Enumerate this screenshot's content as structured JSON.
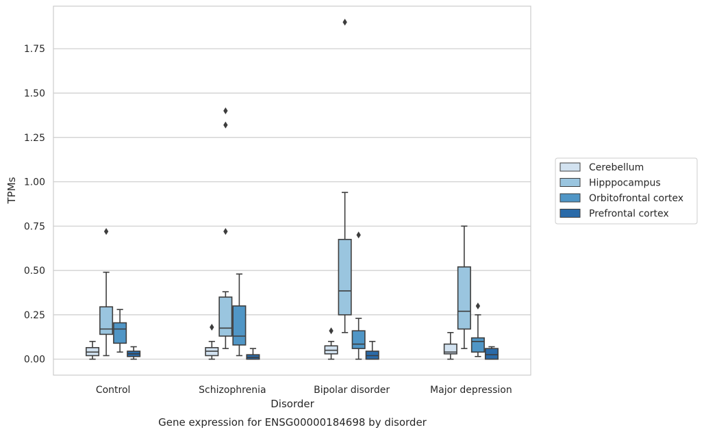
{
  "chart_data": {
    "type": "boxplot",
    "xlabel": "Disorder",
    "ylabel": "TPMs",
    "caption": "Gene expression for ENSG00000184698 by disorder",
    "ylim": [
      -0.09,
      1.99
    ],
    "yticks": [
      "0.00",
      "0.25",
      "0.50",
      "0.75",
      "1.00",
      "1.25",
      "1.50",
      "1.75"
    ],
    "grid": "horizontal",
    "legend_position": "right",
    "categories": [
      "Control",
      "Schizophrenia",
      "Bipolar disorder",
      "Major depression"
    ],
    "series": [
      {
        "name": "Cerebellum",
        "color": "#d2e2f0",
        "boxes": [
          {
            "whislo": 0.0,
            "q1": 0.02,
            "med": 0.04,
            "q3": 0.065,
            "whishi": 0.1,
            "fliers": []
          },
          {
            "whislo": 0.0,
            "q1": 0.02,
            "med": 0.045,
            "q3": 0.065,
            "whishi": 0.1,
            "fliers": [
              0.18
            ]
          },
          {
            "whislo": 0.0,
            "q1": 0.03,
            "med": 0.05,
            "q3": 0.075,
            "whishi": 0.1,
            "fliers": [
              0.16
            ]
          },
          {
            "whislo": 0.0,
            "q1": 0.03,
            "med": 0.04,
            "q3": 0.085,
            "whishi": 0.15,
            "fliers": []
          }
        ]
      },
      {
        "name": "Hipppocampus",
        "color": "#9ac5df",
        "boxes": [
          {
            "whislo": 0.02,
            "q1": 0.14,
            "med": 0.17,
            "q3": 0.295,
            "whishi": 0.49,
            "fliers": [
              0.72
            ]
          },
          {
            "whislo": 0.06,
            "q1": 0.13,
            "med": 0.175,
            "q3": 0.35,
            "whishi": 0.38,
            "fliers": [
              0.72,
              1.32,
              1.4
            ]
          },
          {
            "whislo": 0.15,
            "q1": 0.25,
            "med": 0.385,
            "q3": 0.675,
            "whishi": 0.94,
            "fliers": [
              1.9
            ]
          },
          {
            "whislo": 0.06,
            "q1": 0.17,
            "med": 0.27,
            "q3": 0.52,
            "whishi": 0.75,
            "fliers": []
          }
        ]
      },
      {
        "name": "Orbitofrontal cortex",
        "color": "#5096c6",
        "boxes": [
          {
            "whislo": 0.04,
            "q1": 0.09,
            "med": 0.17,
            "q3": 0.205,
            "whishi": 0.28,
            "fliers": []
          },
          {
            "whislo": 0.02,
            "q1": 0.08,
            "med": 0.13,
            "q3": 0.3,
            "whishi": 0.48,
            "fliers": []
          },
          {
            "whislo": 0.0,
            "q1": 0.06,
            "med": 0.085,
            "q3": 0.16,
            "whishi": 0.23,
            "fliers": [
              0.7
            ]
          },
          {
            "whislo": 0.015,
            "q1": 0.04,
            "med": 0.1,
            "q3": 0.12,
            "whishi": 0.25,
            "fliers": [
              0.3
            ]
          }
        ]
      },
      {
        "name": "Prefrontal cortex",
        "color": "#2a6aa8",
        "boxes": [
          {
            "whislo": 0.0,
            "q1": 0.015,
            "med": 0.03,
            "q3": 0.045,
            "whishi": 0.07,
            "fliers": []
          },
          {
            "whislo": 0.0,
            "q1": 0.0,
            "med": 0.01,
            "q3": 0.025,
            "whishi": 0.06,
            "fliers": []
          },
          {
            "whislo": 0.0,
            "q1": 0.0,
            "med": 0.02,
            "q3": 0.045,
            "whishi": 0.1,
            "fliers": []
          },
          {
            "whislo": 0.0,
            "q1": 0.0,
            "med": 0.025,
            "q3": 0.06,
            "whishi": 0.07,
            "fliers": []
          }
        ]
      }
    ]
  }
}
